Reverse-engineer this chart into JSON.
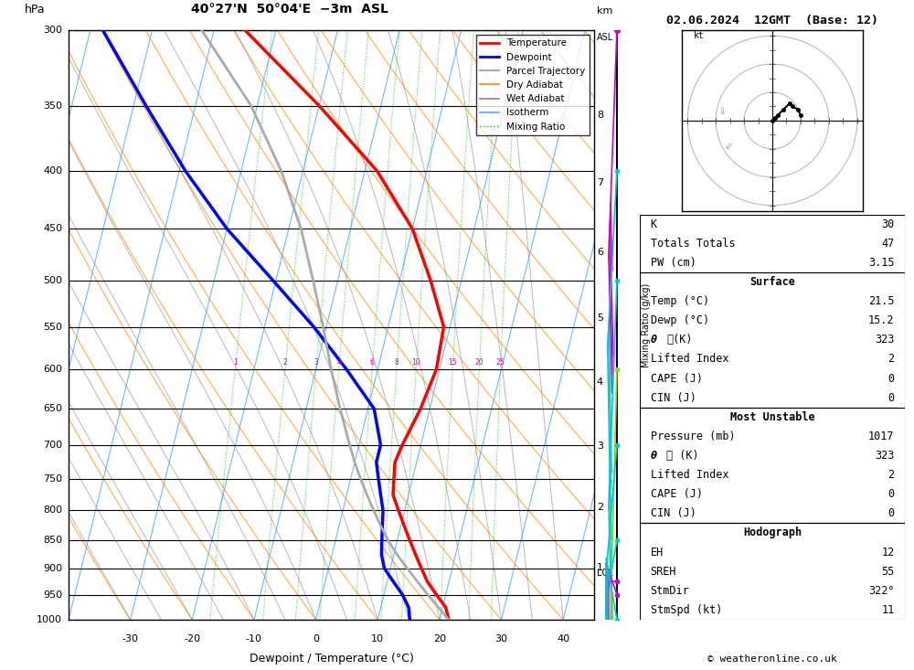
{
  "title_left": "40°27'N  50°04'E  −3m  ASL",
  "title_right": "02.06.2024  12GMT  (Base: 12)",
  "xlabel": "Dewpoint / Temperature (°C)",
  "temp_min": -40,
  "temp_max": 45,
  "temp_ticks": [
    -30,
    -20,
    -10,
    0,
    10,
    20,
    30,
    40
  ],
  "pressure_levels": [
    300,
    350,
    400,
    450,
    500,
    550,
    600,
    650,
    700,
    750,
    800,
    850,
    900,
    950,
    1000
  ],
  "skew_per_decade": 45.0,
  "isotherm_color": "#55aaff",
  "isotherm_lw": 0.8,
  "dry_adiabat_color": "#ff8800",
  "dry_adiabat_lw": 0.8,
  "wet_adiabat_color": "#888888",
  "wet_adiabat_lw": 0.7,
  "mixing_ratio_color": "#00bb00",
  "mixing_ratio_lw": 0.7,
  "mixing_ratio_values": [
    1,
    2,
    3,
    4,
    6,
    8,
    10,
    15,
    20,
    25
  ],
  "mixing_ratio_label_p": 600,
  "temperature_profile": {
    "pressure": [
      1000,
      975,
      950,
      925,
      900,
      875,
      850,
      825,
      800,
      775,
      750,
      725,
      700,
      650,
      600,
      550,
      500,
      450,
      400,
      350,
      300
    ],
    "temp": [
      21.5,
      20.5,
      18.5,
      16.5,
      15.0,
      13.5,
      12.0,
      10.5,
      9.0,
      7.5,
      7.0,
      6.5,
      7.0,
      8.5,
      9.5,
      9.0,
      5.0,
      0.0,
      -8.0,
      -20.0,
      -35.0
    ],
    "color": "#ff0000",
    "lw": 2.5
  },
  "dewpoint_profile": {
    "pressure": [
      1000,
      975,
      950,
      925,
      900,
      875,
      850,
      825,
      800,
      775,
      750,
      725,
      700,
      650,
      600,
      550,
      500,
      450,
      400,
      350,
      300
    ],
    "temp": [
      15.2,
      14.5,
      13.0,
      11.0,
      9.0,
      8.0,
      7.5,
      7.0,
      6.5,
      5.5,
      4.5,
      3.5,
      3.5,
      1.0,
      -5.0,
      -12.0,
      -20.5,
      -30.0,
      -39.0,
      -48.0,
      -58.0
    ],
    "color": "#0000ff",
    "lw": 2.5
  },
  "parcel_trajectory": {
    "pressure": [
      1000,
      975,
      950,
      925,
      900,
      875,
      850,
      825,
      800,
      775,
      750,
      725,
      700,
      650,
      600,
      550,
      500,
      450,
      400,
      350,
      300
    ],
    "temp": [
      21.5,
      19.3,
      17.1,
      14.9,
      12.7,
      10.5,
      8.5,
      6.7,
      5.0,
      3.3,
      1.6,
      0.0,
      -1.5,
      -4.5,
      -7.5,
      -10.5,
      -14.0,
      -18.0,
      -23.5,
      -31.0,
      -42.0
    ],
    "color": "#aaaaaa",
    "lw": 2.0
  },
  "km_labels": [
    {
      "km": 8,
      "p": 357
    },
    {
      "km": 7,
      "p": 410
    },
    {
      "km": 6,
      "p": 472
    },
    {
      "km": 5,
      "p": 540
    },
    {
      "km": 4,
      "p": 616
    },
    {
      "km": 3,
      "p": 701
    },
    {
      "km": 2,
      "p": 795
    },
    {
      "km": 1,
      "p": 899
    }
  ],
  "lcl_p": 910,
  "wind_barb_pressures": [
    300,
    400,
    500,
    600,
    700,
    850,
    925,
    950,
    1000
  ],
  "wind_barb_colors": [
    "#cc00cc",
    "#00cccc",
    "#00cccc",
    "#aacc00",
    "#00cccc",
    "#00cccc",
    "#cc00cc",
    "#cc00cc",
    "#00cccc"
  ],
  "wind_barb_speeds": [
    35,
    30,
    25,
    15,
    20,
    25,
    30,
    35,
    25
  ],
  "wind_barb_dirs": [
    310,
    300,
    310,
    320,
    290,
    280,
    270,
    265,
    260
  ],
  "info": {
    "K": "30",
    "Totals Totals": "47",
    "PW (cm)": "3.15",
    "Surface_Temp": "21.5",
    "Surface_Dewp": "15.2",
    "Surface_theta_e": "323",
    "Surface_LI": "2",
    "Surface_CAPE": "0",
    "Surface_CIN": "0",
    "MU_Pressure": "1017",
    "MU_theta_e": "323",
    "MU_LI": "2",
    "MU_CAPE": "0",
    "MU_CIN": "0",
    "Hodo_EH": "12",
    "Hodo_SREH": "55",
    "Hodo_StmDir": "322°",
    "Hodo_StmSpd": "11"
  },
  "hodo_trace": {
    "u": [
      0,
      1,
      2,
      4,
      6,
      7,
      9,
      10
    ],
    "v": [
      0,
      1,
      2,
      4,
      6,
      5,
      4,
      2
    ]
  }
}
